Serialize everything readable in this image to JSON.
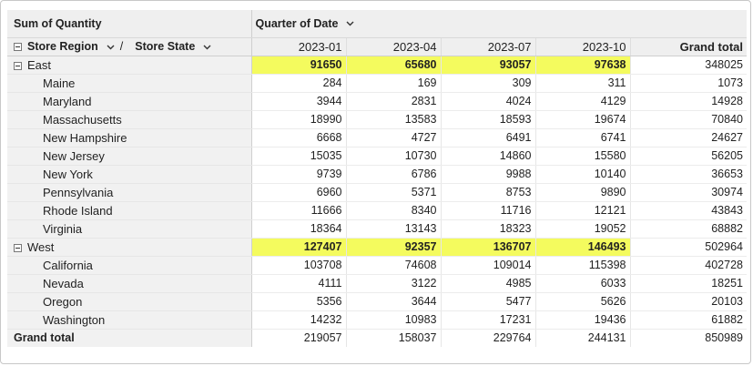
{
  "pivot": {
    "measure_label": "Sum of Quantity",
    "column_field": "Quarter of Date",
    "row_fields": [
      "Store Region",
      "Store State"
    ],
    "row_field_separator": "/",
    "columns": [
      "2023-01",
      "2023-04",
      "2023-07",
      "2023-10"
    ],
    "grand_total_label": "Grand total",
    "highlight_color": "#f4fb5e",
    "rows": [
      {
        "label": "East",
        "level": 0,
        "values": [
          "91650",
          "65680",
          "93057",
          "97638"
        ],
        "total": "348025"
      },
      {
        "label": "Maine",
        "level": 1,
        "values": [
          "284",
          "169",
          "309",
          "311"
        ],
        "total": "1073"
      },
      {
        "label": "Maryland",
        "level": 1,
        "values": [
          "3944",
          "2831",
          "4024",
          "4129"
        ],
        "total": "14928"
      },
      {
        "label": "Massachusetts",
        "level": 1,
        "values": [
          "18990",
          "13583",
          "18593",
          "19674"
        ],
        "total": "70840"
      },
      {
        "label": "New Hampshire",
        "level": 1,
        "values": [
          "6668",
          "4727",
          "6491",
          "6741"
        ],
        "total": "24627"
      },
      {
        "label": "New Jersey",
        "level": 1,
        "values": [
          "15035",
          "10730",
          "14860",
          "15580"
        ],
        "total": "56205"
      },
      {
        "label": "New York",
        "level": 1,
        "values": [
          "9739",
          "6786",
          "9988",
          "10140"
        ],
        "total": "36653"
      },
      {
        "label": "Pennsylvania",
        "level": 1,
        "values": [
          "6960",
          "5371",
          "8753",
          "9890"
        ],
        "total": "30974"
      },
      {
        "label": "Rhode Island",
        "level": 1,
        "values": [
          "11666",
          "8340",
          "11716",
          "12121"
        ],
        "total": "43843"
      },
      {
        "label": "Virginia",
        "level": 1,
        "values": [
          "18364",
          "13143",
          "18323",
          "19052"
        ],
        "total": "68882"
      },
      {
        "label": "West",
        "level": 0,
        "values": [
          "127407",
          "92357",
          "136707",
          "146493"
        ],
        "total": "502964"
      },
      {
        "label": "California",
        "level": 1,
        "values": [
          "103708",
          "74608",
          "109014",
          "115398"
        ],
        "total": "402728"
      },
      {
        "label": "Nevada",
        "level": 1,
        "values": [
          "4111",
          "3122",
          "4985",
          "6033"
        ],
        "total": "18251"
      },
      {
        "label": "Oregon",
        "level": 1,
        "values": [
          "5356",
          "3644",
          "5477",
          "5626"
        ],
        "total": "20103"
      },
      {
        "label": "Washington",
        "level": 1,
        "values": [
          "14232",
          "10983",
          "17231",
          "19436"
        ],
        "total": "61882"
      }
    ],
    "grand_total_row": {
      "values": [
        "219057",
        "158037",
        "229764",
        "244131"
      ],
      "total": "850989"
    }
  }
}
